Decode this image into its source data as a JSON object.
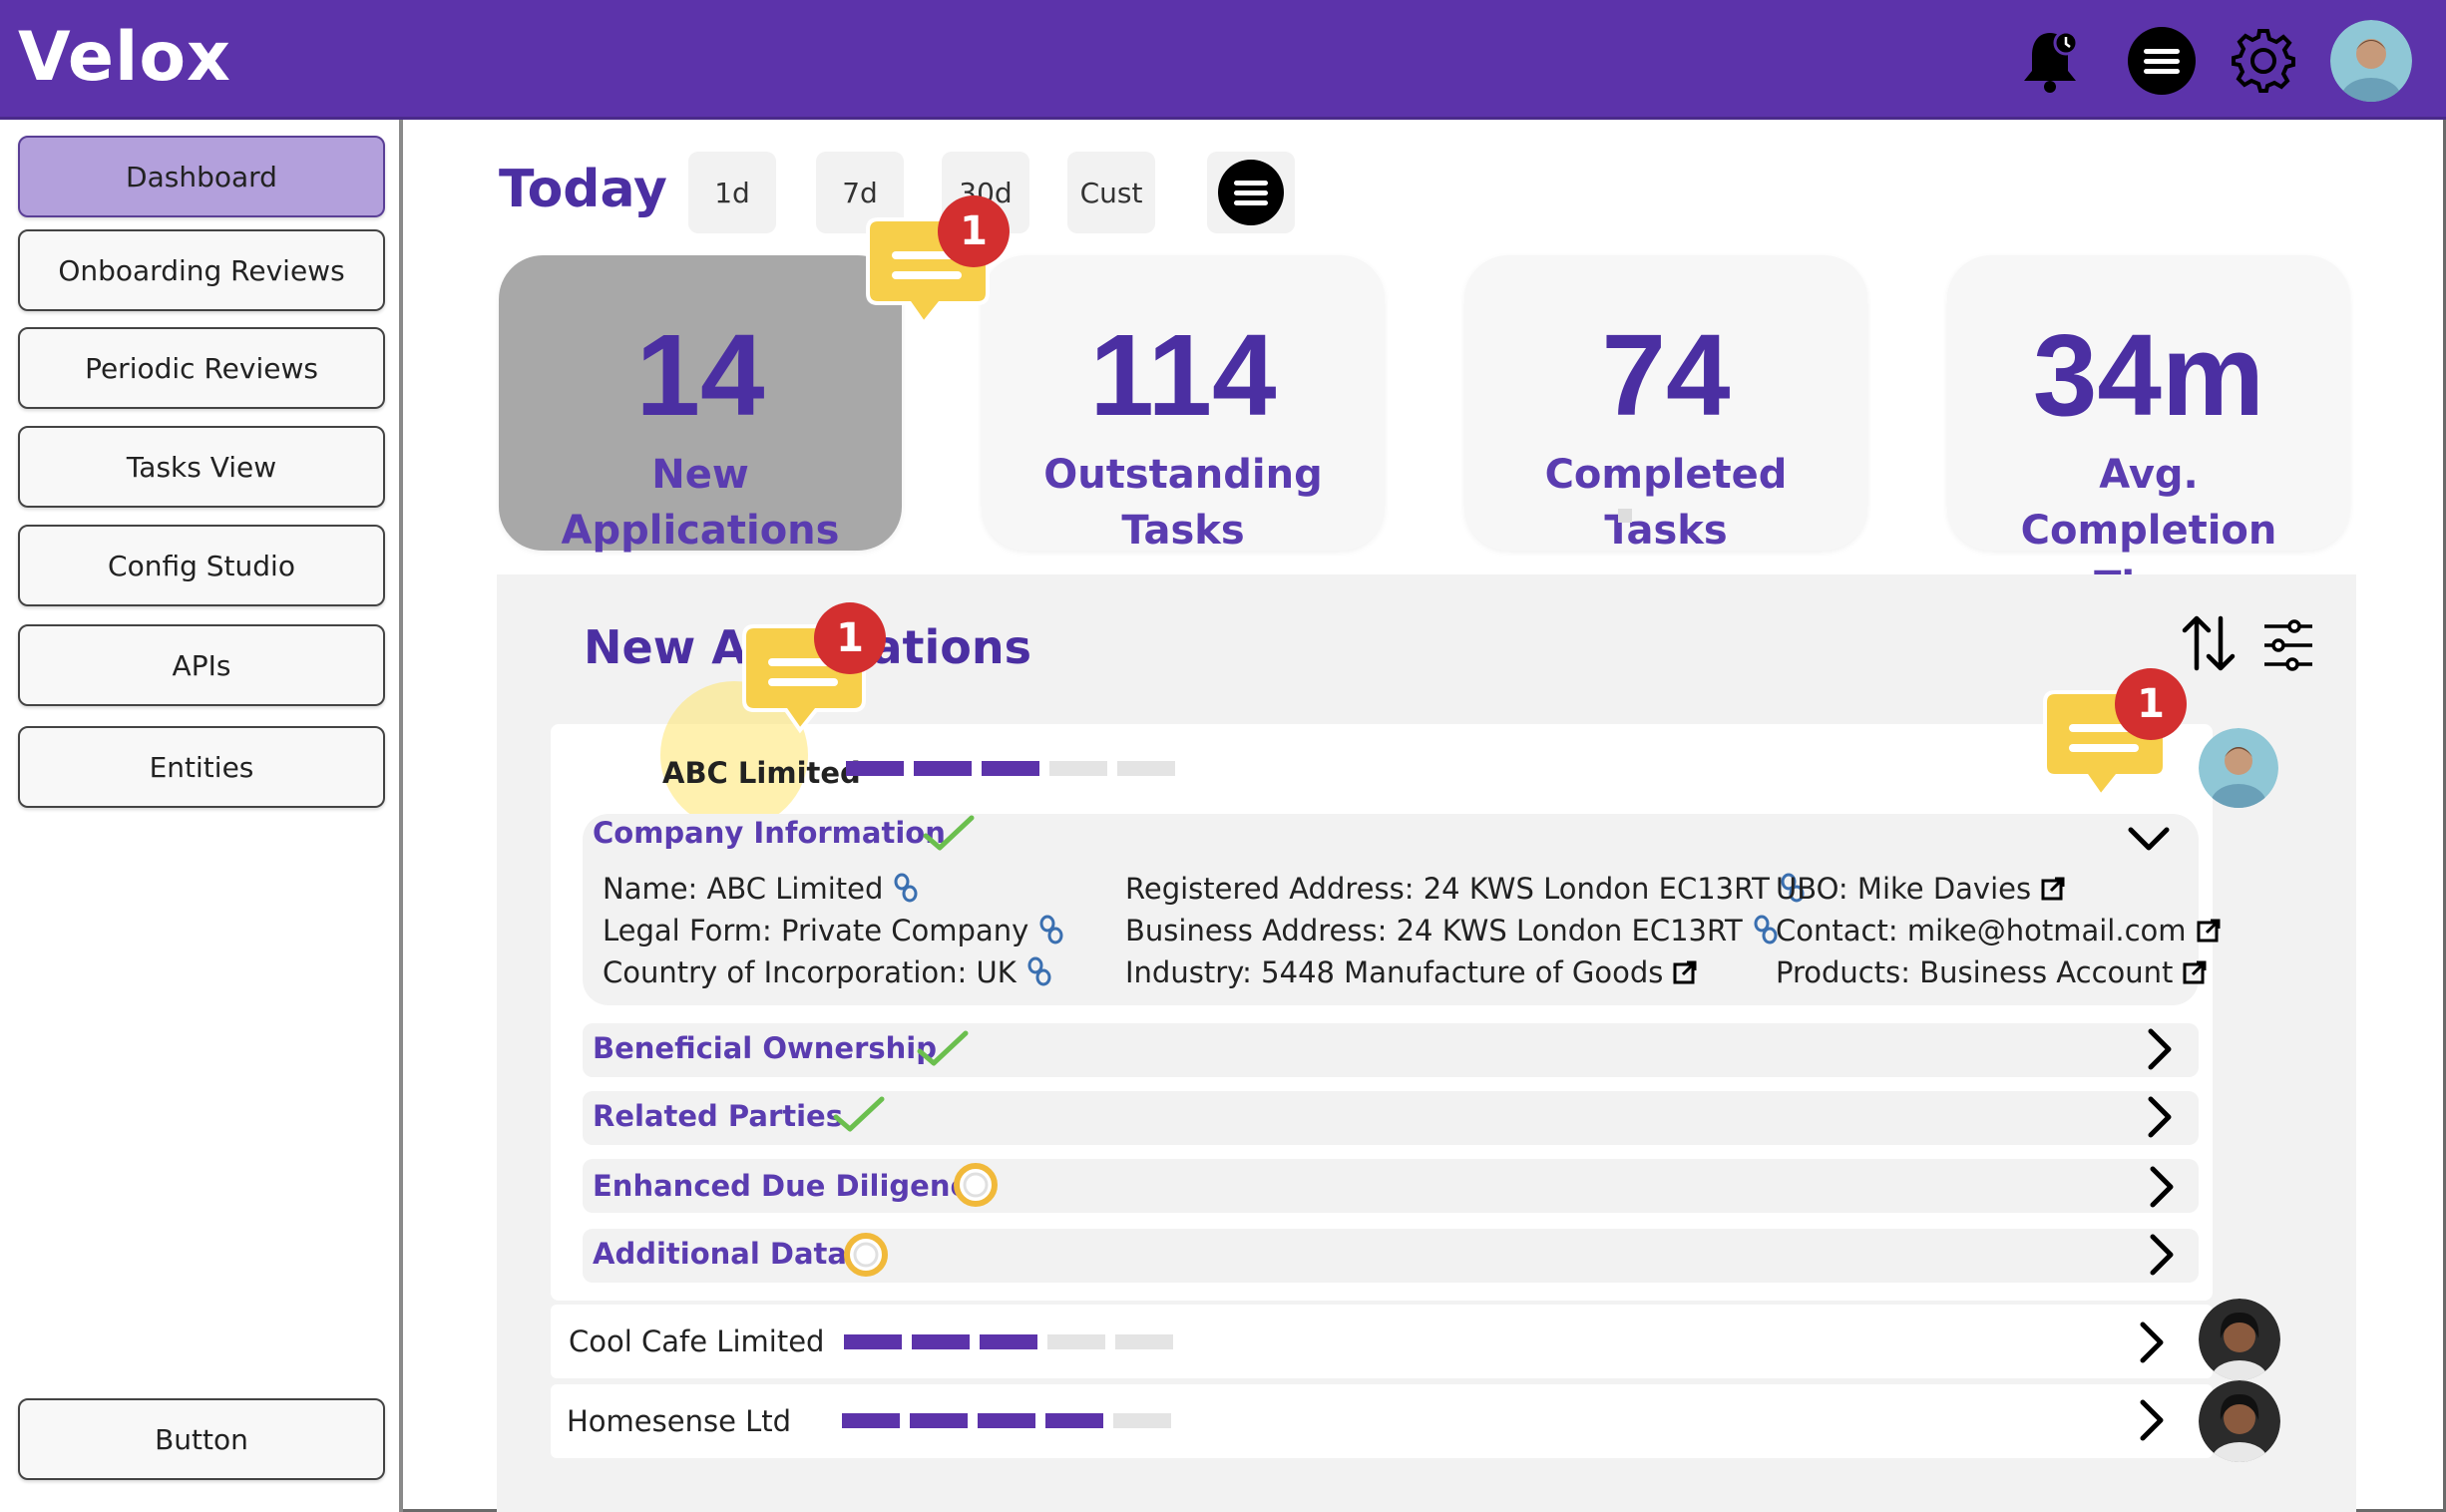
{
  "app": {
    "title": "Velox"
  },
  "header": {
    "icons": [
      "bell-alert-icon",
      "menu-icon",
      "gear-icon",
      "avatar"
    ]
  },
  "sidebar": {
    "items": [
      {
        "label": "Dashboard",
        "active": true
      },
      {
        "label": "Onboarding Reviews",
        "active": false
      },
      {
        "label": "Periodic Reviews",
        "active": false
      },
      {
        "label": "Tasks View",
        "active": false
      },
      {
        "label": "Config Studio",
        "active": false
      },
      {
        "label": "APIs",
        "active": false
      },
      {
        "label": "Entities",
        "active": false
      }
    ],
    "bottom_button": "Button"
  },
  "main": {
    "title": "Today",
    "ranges": [
      "1d",
      "7d",
      "30d",
      "Cust"
    ],
    "stats": [
      {
        "value": "14",
        "label": "New Applications",
        "selected": true
      },
      {
        "value": "114",
        "label": "Outstanding Tasks",
        "selected": false
      },
      {
        "value": "74",
        "label": "Completed Tasks",
        "selected": false
      },
      {
        "value": "34m",
        "label": "Avg. Completion Time",
        "selected": false
      }
    ],
    "comment_badges": [
      "1",
      "1",
      "1"
    ],
    "applications": {
      "title": "New Applications",
      "expanded": {
        "name": "ABC Limited",
        "progress": 3,
        "progress_total": 5,
        "company_info": {
          "title": "Company Information",
          "col1": [
            "Name: ABC Limited",
            "Legal Form: Private Company",
            "Country of Incorporation: UK"
          ],
          "col2": [
            "Registered Address: 24 KWS London EC13RT",
            "Business Address: 24 KWS London EC13RT",
            "Industry: 5448 Manufacture of Goods"
          ],
          "col3": [
            "UBO: Mike Davies",
            "Contact: mike@hotmail.com",
            "Products: Business Account"
          ]
        },
        "sections": [
          {
            "title": "Beneficial Ownership",
            "status": "complete"
          },
          {
            "title": "Related Parties",
            "status": "complete"
          },
          {
            "title": "Enhanced Due Diligence",
            "status": "in-progress"
          },
          {
            "title": "Additional Data",
            "status": "in-progress"
          }
        ]
      },
      "rows": [
        {
          "name": "Cool Cafe Limited",
          "progress": 3,
          "progress_total": 5
        },
        {
          "name": "Homesense Ltd",
          "progress": 4,
          "progress_total": 5
        }
      ]
    }
  },
  "colors": {
    "brand": "#5c33aa",
    "accent_text": "#4b2fa2",
    "success": "#6bbf4e",
    "badge": "#d32f2f",
    "comment": "#f7cf4a"
  }
}
